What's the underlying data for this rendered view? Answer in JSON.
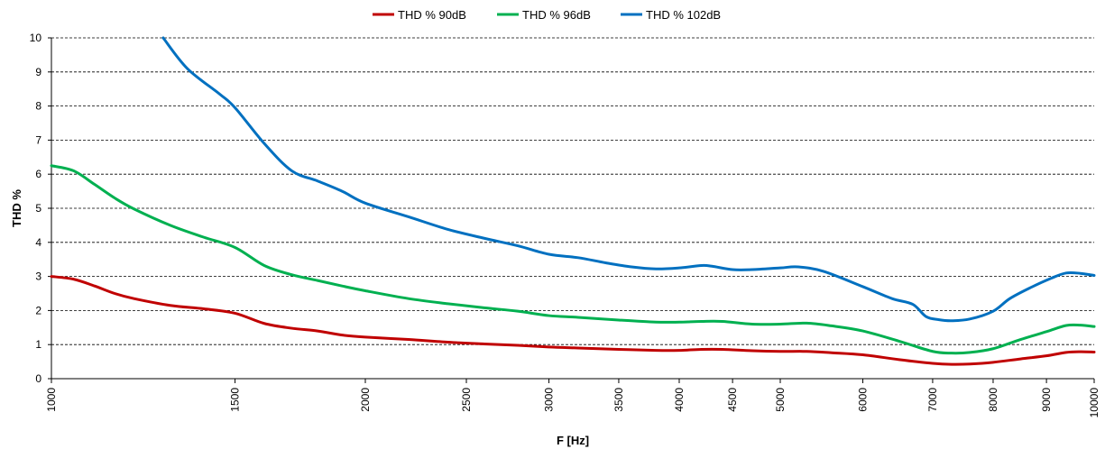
{
  "chart_data": {
    "type": "line",
    "xlabel": "F [Hz]",
    "ylabel": "THD %",
    "xscale": "log",
    "xlim": [
      1000,
      10000
    ],
    "ylim": [
      0,
      10
    ],
    "xticks": [
      1000,
      1500,
      2000,
      2500,
      3000,
      3500,
      4000,
      4500,
      5000,
      6000,
      7000,
      8000,
      9000,
      10000
    ],
    "xtick_labels": [
      "1000",
      "1500",
      "2000",
      "2500",
      "3000",
      "3500",
      "4000",
      "4500",
      "5000",
      "6000",
      "7000",
      "8000",
      "9000",
      "10000"
    ],
    "yticks": [
      0,
      1,
      2,
      3,
      4,
      5,
      6,
      7,
      8,
      9,
      10
    ],
    "ytick_labels": [
      "0",
      "1",
      "2",
      "3",
      "4",
      "5",
      "6",
      "7",
      "8",
      "9",
      "10"
    ],
    "grid": "horizontal dashed",
    "legend_position": "top-center",
    "series": [
      {
        "name": "THD % 90dB",
        "color": "#c00000",
        "points": [
          [
            1000,
            3.0
          ],
          [
            1050,
            2.92
          ],
          [
            1100,
            2.72
          ],
          [
            1150,
            2.5
          ],
          [
            1200,
            2.35
          ],
          [
            1300,
            2.15
          ],
          [
            1400,
            2.05
          ],
          [
            1500,
            1.92
          ],
          [
            1600,
            1.62
          ],
          [
            1700,
            1.48
          ],
          [
            1800,
            1.4
          ],
          [
            1900,
            1.28
          ],
          [
            2000,
            1.22
          ],
          [
            2200,
            1.15
          ],
          [
            2400,
            1.07
          ],
          [
            2600,
            1.02
          ],
          [
            2800,
            0.98
          ],
          [
            3000,
            0.93
          ],
          [
            3200,
            0.9
          ],
          [
            3500,
            0.86
          ],
          [
            3800,
            0.83
          ],
          [
            4000,
            0.83
          ],
          [
            4200,
            0.86
          ],
          [
            4400,
            0.86
          ],
          [
            4700,
            0.82
          ],
          [
            5000,
            0.8
          ],
          [
            5300,
            0.8
          ],
          [
            5600,
            0.76
          ],
          [
            6000,
            0.7
          ],
          [
            6500,
            0.56
          ],
          [
            7000,
            0.45
          ],
          [
            7300,
            0.42
          ],
          [
            7600,
            0.43
          ],
          [
            8000,
            0.48
          ],
          [
            8500,
            0.58
          ],
          [
            9000,
            0.67
          ],
          [
            9400,
            0.77
          ],
          [
            9700,
            0.79
          ],
          [
            10000,
            0.78
          ]
        ]
      },
      {
        "name": "THD % 96dB",
        "color": "#00b050",
        "points": [
          [
            1000,
            6.25
          ],
          [
            1050,
            6.1
          ],
          [
            1100,
            5.7
          ],
          [
            1150,
            5.3
          ],
          [
            1200,
            4.98
          ],
          [
            1300,
            4.5
          ],
          [
            1400,
            4.15
          ],
          [
            1500,
            3.85
          ],
          [
            1600,
            3.32
          ],
          [
            1700,
            3.05
          ],
          [
            1800,
            2.88
          ],
          [
            1900,
            2.72
          ],
          [
            2000,
            2.58
          ],
          [
            2200,
            2.35
          ],
          [
            2400,
            2.2
          ],
          [
            2600,
            2.08
          ],
          [
            2800,
            1.98
          ],
          [
            3000,
            1.85
          ],
          [
            3200,
            1.8
          ],
          [
            3500,
            1.72
          ],
          [
            3800,
            1.66
          ],
          [
            4000,
            1.66
          ],
          [
            4200,
            1.68
          ],
          [
            4400,
            1.68
          ],
          [
            4700,
            1.6
          ],
          [
            5000,
            1.6
          ],
          [
            5300,
            1.63
          ],
          [
            5600,
            1.55
          ],
          [
            6000,
            1.4
          ],
          [
            6500,
            1.1
          ],
          [
            7000,
            0.8
          ],
          [
            7300,
            0.75
          ],
          [
            7600,
            0.77
          ],
          [
            8000,
            0.88
          ],
          [
            8500,
            1.15
          ],
          [
            9000,
            1.38
          ],
          [
            9400,
            1.56
          ],
          [
            9700,
            1.57
          ],
          [
            10000,
            1.53
          ]
        ]
      },
      {
        "name": "THD % 102dB",
        "color": "#0070c0",
        "points": [
          [
            1280,
            10.0
          ],
          [
            1350,
            9.1
          ],
          [
            1450,
            8.35
          ],
          [
            1500,
            7.95
          ],
          [
            1600,
            6.9
          ],
          [
            1700,
            6.1
          ],
          [
            1800,
            5.8
          ],
          [
            1900,
            5.5
          ],
          [
            2000,
            5.15
          ],
          [
            2200,
            4.75
          ],
          [
            2400,
            4.38
          ],
          [
            2600,
            4.12
          ],
          [
            2800,
            3.9
          ],
          [
            3000,
            3.65
          ],
          [
            3200,
            3.55
          ],
          [
            3400,
            3.4
          ],
          [
            3600,
            3.28
          ],
          [
            3800,
            3.22
          ],
          [
            4000,
            3.25
          ],
          [
            4200,
            3.32
          ],
          [
            4300,
            3.3
          ],
          [
            4500,
            3.2
          ],
          [
            4700,
            3.2
          ],
          [
            5000,
            3.25
          ],
          [
            5200,
            3.28
          ],
          [
            5500,
            3.15
          ],
          [
            6000,
            2.7
          ],
          [
            6400,
            2.35
          ],
          [
            6700,
            2.18
          ],
          [
            6900,
            1.82
          ],
          [
            7100,
            1.73
          ],
          [
            7300,
            1.7
          ],
          [
            7600,
            1.75
          ],
          [
            8000,
            1.98
          ],
          [
            8300,
            2.35
          ],
          [
            8700,
            2.68
          ],
          [
            9100,
            2.95
          ],
          [
            9400,
            3.1
          ],
          [
            9700,
            3.09
          ],
          [
            10000,
            3.03
          ]
        ]
      }
    ]
  }
}
